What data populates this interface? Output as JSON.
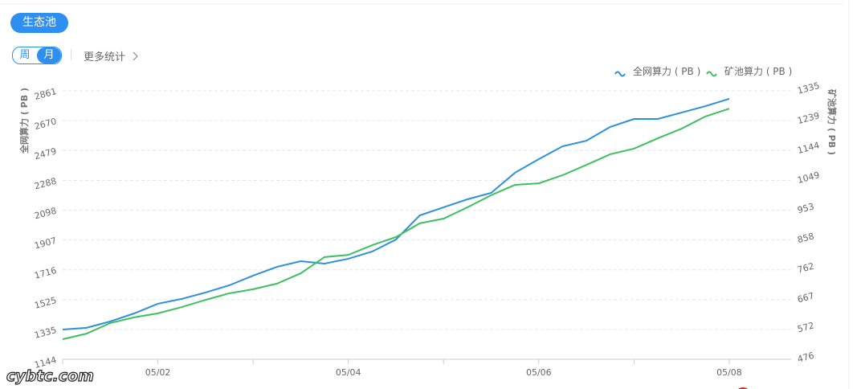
{
  "header": {
    "button": "生态池",
    "tabs": [
      "周",
      "月"
    ],
    "more": "更多统计"
  },
  "watermark": "cybtc.com",
  "chart_data": {
    "type": "line",
    "y_label": "全网算力 ( PB )",
    "y2_label": "矿池算力 ( PB )",
    "x": [
      1,
      1.25,
      1.5,
      1.75,
      2,
      2.25,
      2.5,
      2.75,
      3,
      3.25,
      3.5,
      3.75,
      4,
      4.25,
      4.5,
      4.75,
      5,
      5.25,
      5.5,
      5.75,
      6,
      6.25,
      6.5,
      6.75,
      7,
      7.25,
      7.5,
      7.75,
      8
    ],
    "xlim": [
      1,
      8.65
    ],
    "xticks": [
      {
        "value": 1,
        "label": null
      },
      {
        "value": 2,
        "label": "05/02"
      },
      {
        "value": 3,
        "label": null
      },
      {
        "value": 4,
        "label": "05/04"
      },
      {
        "value": 5,
        "label": null
      },
      {
        "value": 6,
        "label": "05/06"
      },
      {
        "value": 7,
        "label": null
      },
      {
        "value": 8,
        "label": "05/08"
      }
    ],
    "ylim": [
      1144,
      2861
    ],
    "yticks": [
      1144,
      1335,
      1525,
      1716,
      1907,
      2098,
      2288,
      2479,
      2670,
      2861
    ],
    "y2lim": [
      476,
      1335
    ],
    "y2ticks": [
      476,
      572,
      667,
      762,
      858,
      953,
      1049,
      1144,
      1239,
      1335
    ],
    "grid": true,
    "series": [
      {
        "name": "全网算力 ( PB )",
        "color": "#2d8fe0",
        "values": [
          1334,
          1345,
          1386,
          1437,
          1499,
          1530,
          1571,
          1617,
          1679,
          1735,
          1771,
          1756,
          1787,
          1833,
          1910,
          2064,
          2116,
          2167,
          2208,
          2337,
          2424,
          2506,
          2542,
          2630,
          2681,
          2681,
          2722,
          2763,
          2810
        ]
      },
      {
        "name": "矿池算力 ( PB )",
        "color": "#3cc060",
        "axis": "y2",
        "values": [
          540,
          558,
          592,
          610,
          623,
          643,
          666,
          687,
          700,
          718,
          751,
          803,
          810,
          841,
          867,
          911,
          926,
          962,
          1001,
          1034,
          1039,
          1065,
          1098,
          1132,
          1150,
          1183,
          1214,
          1253,
          1278
        ]
      }
    ]
  }
}
